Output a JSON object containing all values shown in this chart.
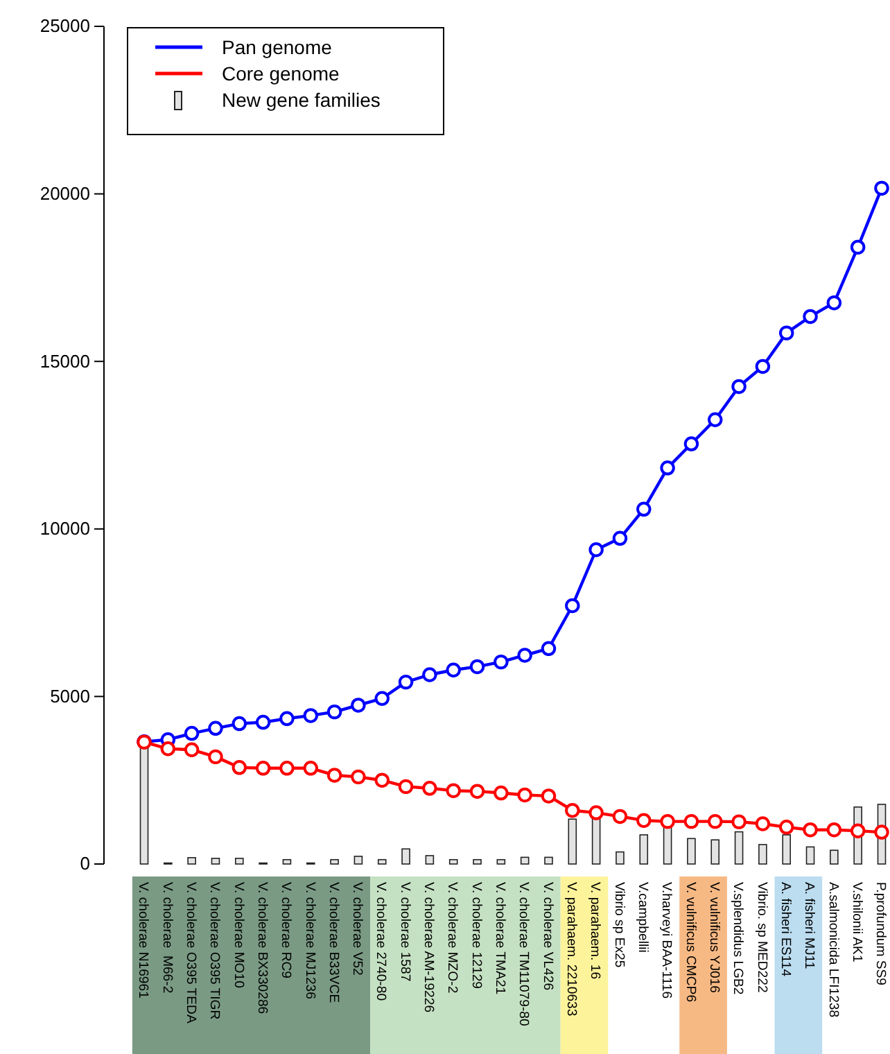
{
  "chart_data": {
    "type": "line",
    "categories": [
      "V. cholerae N16961",
      "V. cholerae  M66-2",
      "V. cholerae O395 TEDA",
      "V. cholerae O395 TIGR",
      "V. cholerae MO10",
      "V. cholerae BX330286",
      "V. cholerae RC9",
      "V. cholerae MJ1236",
      "V. cholerae B33VCE",
      "V. cholerae V52",
      "V. cholerae 2740-80",
      "V. cholerae 1587",
      "V. cholerae AM-19226",
      "V. cholerae MZO-2",
      "V. cholerae 12129",
      "V. cholerae TMA21",
      "V. cholerae TM11079-80",
      "V. cholerae VL426",
      "V. parahaem. 2210633",
      "V. parahaem. 16",
      "Vibrio sp Ex25",
      "V.campbellii",
      "V.harveyi BAA-1116",
      "V. vulnificus CMCP6",
      "V. vulnificus YJ016",
      "V.splendidus LGB2",
      "Vibrio. sp MED222",
      "A. fisheri ES114",
      "A. fisheri MJ11",
      "A.salmonicida LFI1238",
      "V.shilonii AK1",
      "P.profundum SS9"
    ],
    "series": [
      {
        "name": "New gene families",
        "type": "bar",
        "color": "#e3e3e3",
        "values": [
          3640,
          30,
          190,
          170,
          170,
          30,
          130,
          30,
          130,
          230,
          130,
          450,
          250,
          130,
          130,
          130,
          200,
          200,
          1340,
          1380,
          360,
          870,
          1130,
          760,
          720,
          960,
          580,
          870,
          510,
          410,
          1700,
          1780
        ]
      },
      {
        "name": "Pan genome",
        "color": "#0000ff",
        "values": [
          3650,
          3710,
          3900,
          4050,
          4190,
          4230,
          4340,
          4430,
          4540,
          4740,
          4940,
          5430,
          5650,
          5790,
          5890,
          6030,
          6230,
          6430,
          7710,
          9380,
          9720,
          10590,
          11820,
          12540,
          13260,
          14250,
          14850,
          15850,
          16340,
          16750,
          18410,
          20170
        ]
      },
      {
        "name": "Core genome",
        "color": "#ff0000",
        "values": [
          3640,
          3440,
          3410,
          3200,
          2880,
          2860,
          2860,
          2860,
          2650,
          2600,
          2500,
          2310,
          2260,
          2190,
          2170,
          2120,
          2060,
          2030,
          1600,
          1530,
          1420,
          1300,
          1270,
          1270,
          1270,
          1260,
          1200,
          1100,
          1020,
          1020,
          990,
          950
        ]
      }
    ],
    "ylim": [
      0,
      25000
    ],
    "yticks": [
      0,
      5000,
      10000,
      15000,
      20000,
      25000
    ],
    "marker": "circle",
    "line_style": "solid",
    "grid": false,
    "legend": "top left"
  }
}
